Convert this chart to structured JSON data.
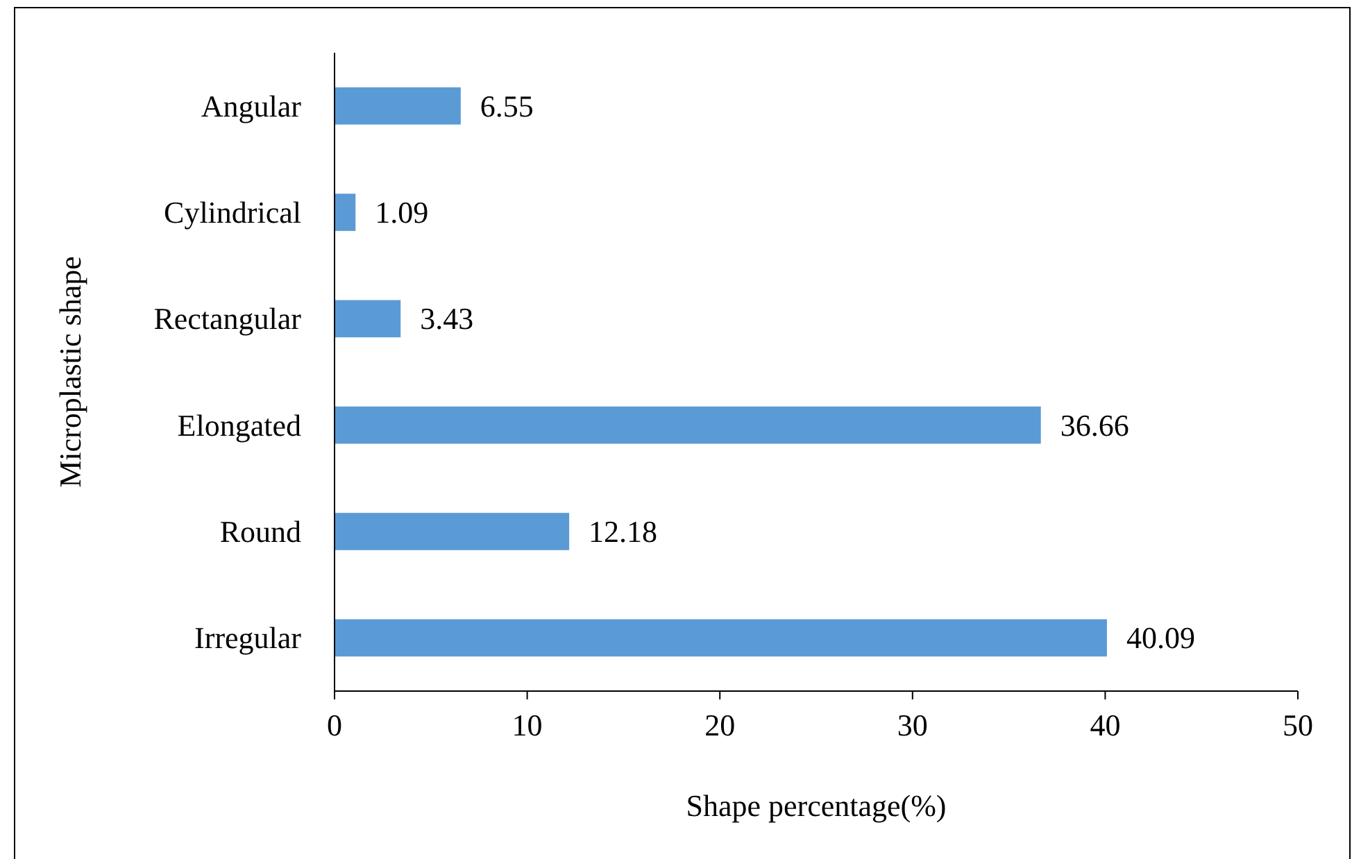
{
  "chart_data": {
    "type": "bar",
    "orientation": "horizontal",
    "xlabel": "Shape percentage(%)",
    "ylabel": "Microplastic shape",
    "categories": [
      "Angular",
      "Cylindrical",
      "Rectangular",
      "Elongated",
      "Round",
      "Irregular"
    ],
    "values": [
      6.55,
      1.09,
      3.43,
      36.66,
      12.18,
      40.09
    ],
    "color": "#5b9bd5",
    "xlim": [
      0,
      50
    ],
    "xticks": [
      0,
      10,
      20,
      30,
      40,
      50
    ],
    "data_labels": true
  }
}
